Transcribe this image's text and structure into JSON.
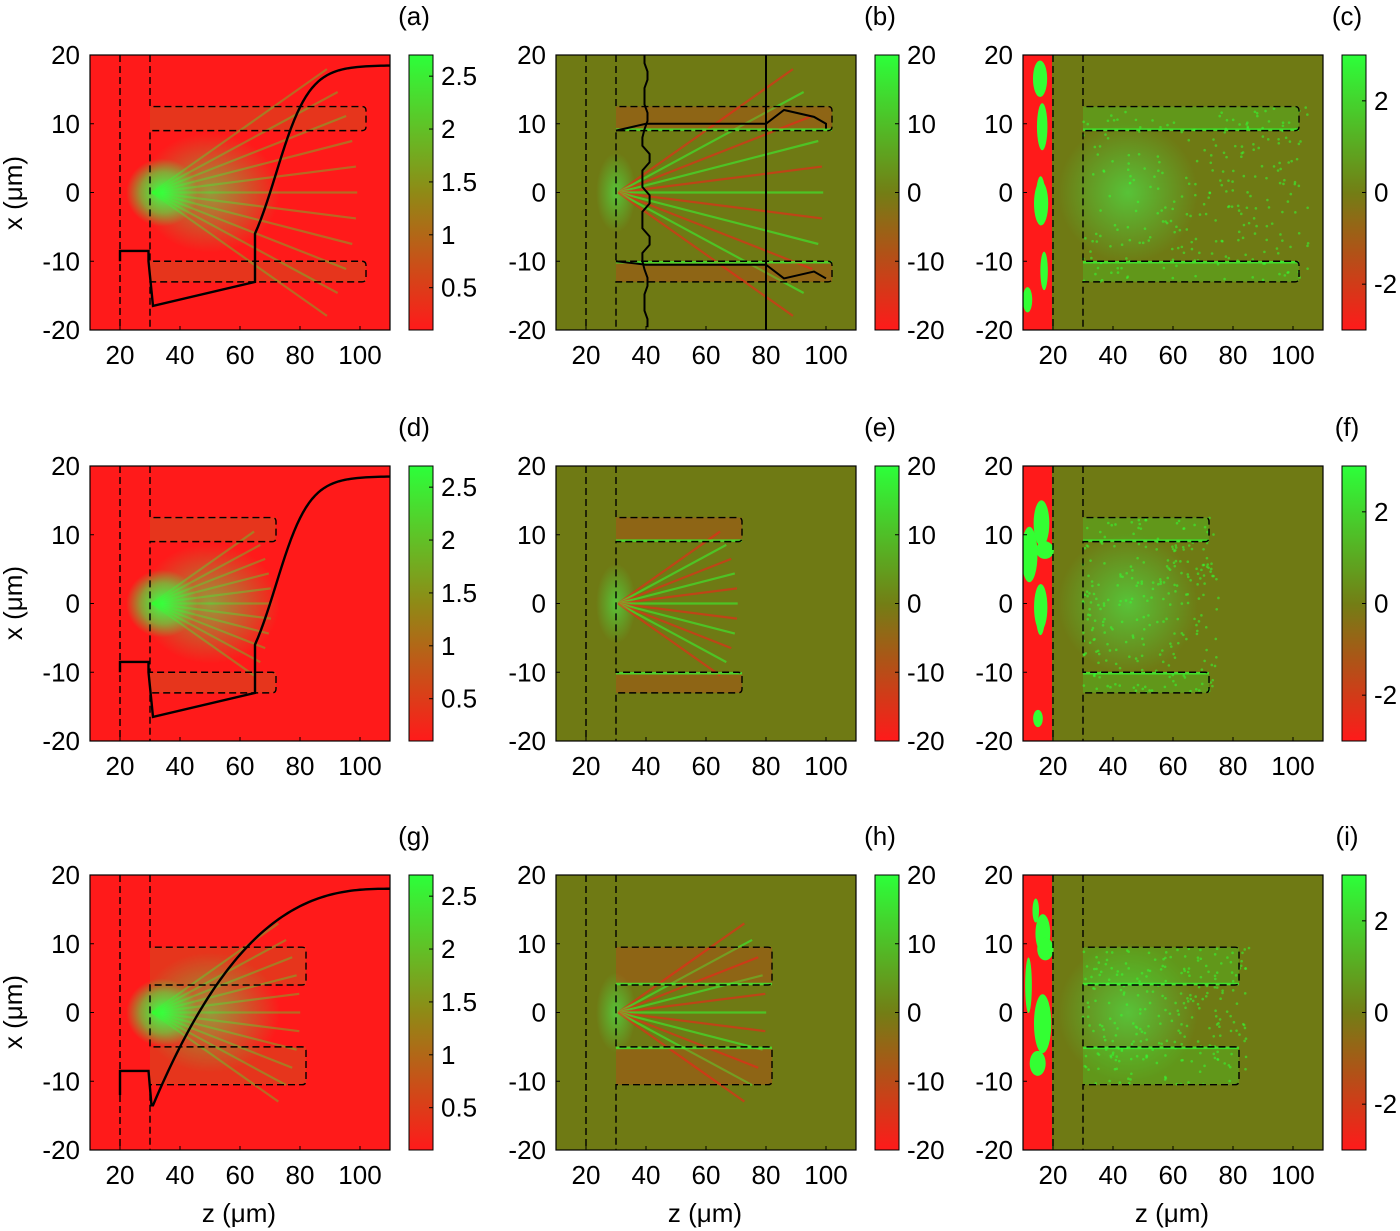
{
  "chart_data": [
    {
      "type": "heatmap",
      "panel": "(a)",
      "colorbar": "intensity",
      "xlim": [
        10,
        110
      ],
      "ylim": [
        -20,
        20
      ],
      "xticks": [
        "20",
        "40",
        "60",
        "80",
        "100"
      ],
      "yticks": [
        "20",
        "10",
        "0",
        "-10",
        "-20"
      ],
      "cbticks": [
        "2.5",
        "2",
        "1.5",
        "1",
        "0.5"
      ],
      "cbrange": [
        0.1,
        2.7
      ],
      "overlay": "profile-a",
      "device": {
        "wallStart": 20,
        "wallEnd": 30,
        "armEnd": 102,
        "upper": [
          9,
          12.5
        ],
        "lower": [
          -13,
          -10
        ]
      }
    },
    {
      "type": "heatmap",
      "panel": "(b)",
      "colorbar": "field",
      "xlim": [
        10,
        110
      ],
      "ylim": [
        -20,
        20
      ],
      "xticks": [
        "20",
        "40",
        "60",
        "80",
        "100"
      ],
      "yticks": [
        "20",
        "10",
        "0",
        "-10",
        "-20"
      ],
      "cbticks": [
        "20",
        "10",
        "0",
        "-10",
        "-20"
      ],
      "cbrange": [
        -20,
        20
      ],
      "overlay": "profile-b",
      "device": {
        "wallStart": 20,
        "wallEnd": 30,
        "armEnd": 102,
        "upper": [
          9,
          12.5
        ],
        "lower": [
          -13,
          -10
        ]
      }
    },
    {
      "type": "heatmap",
      "panel": "(c)",
      "colorbar": "phase",
      "xlim": [
        10,
        110
      ],
      "ylim": [
        -20,
        20
      ],
      "xticks": [
        "20",
        "40",
        "60",
        "80",
        "100"
      ],
      "yticks": [
        "20",
        "10",
        "0",
        "-10",
        "-20"
      ],
      "cbticks": [
        "2",
        "0",
        "-2"
      ],
      "cbrange": [
        -3,
        3
      ],
      "overlay": "none",
      "device": {
        "wallStart": 20,
        "wallEnd": 30,
        "armEnd": 102,
        "upper": [
          9,
          12.5
        ],
        "lower": [
          -13,
          -10
        ]
      }
    },
    {
      "type": "heatmap",
      "panel": "(d)",
      "colorbar": "intensity",
      "xlim": [
        10,
        110
      ],
      "ylim": [
        -20,
        20
      ],
      "xticks": [
        "20",
        "40",
        "60",
        "80",
        "100"
      ],
      "yticks": [
        "20",
        "10",
        "0",
        "-10",
        "-20"
      ],
      "cbticks": [
        "2.5",
        "2",
        "1.5",
        "1",
        "0.5"
      ],
      "cbrange": [
        0.1,
        2.7
      ],
      "overlay": "profile-a",
      "device": {
        "wallStart": 20,
        "wallEnd": 30,
        "armEnd": 72,
        "upper": [
          9,
          12.5
        ],
        "lower": [
          -13,
          -10
        ]
      }
    },
    {
      "type": "heatmap",
      "panel": "(e)",
      "colorbar": "field",
      "xlim": [
        10,
        110
      ],
      "ylim": [
        -20,
        20
      ],
      "xticks": [
        "20",
        "40",
        "60",
        "80",
        "100"
      ],
      "yticks": [
        "20",
        "10",
        "0",
        "-10",
        "-20"
      ],
      "cbticks": [
        "20",
        "10",
        "0",
        "-10",
        "-20"
      ],
      "cbrange": [
        -20,
        20
      ],
      "overlay": "none",
      "device": {
        "wallStart": 20,
        "wallEnd": 30,
        "armEnd": 72,
        "upper": [
          9,
          12.5
        ],
        "lower": [
          -13,
          -10
        ]
      }
    },
    {
      "type": "heatmap",
      "panel": "(f)",
      "colorbar": "phase",
      "xlim": [
        10,
        110
      ],
      "ylim": [
        -20,
        20
      ],
      "xticks": [
        "20",
        "40",
        "60",
        "80",
        "100"
      ],
      "yticks": [
        "20",
        "10",
        "0",
        "-10",
        "-20"
      ],
      "cbticks": [
        "2",
        "0",
        "-2"
      ],
      "cbrange": [
        -3,
        3
      ],
      "overlay": "none",
      "device": {
        "wallStart": 20,
        "wallEnd": 30,
        "armEnd": 72,
        "upper": [
          9,
          12.5
        ],
        "lower": [
          -13,
          -10
        ]
      }
    },
    {
      "type": "heatmap",
      "panel": "(g)",
      "colorbar": "intensity",
      "xlim": [
        10,
        110
      ],
      "ylim": [
        -20,
        20
      ],
      "xticks": [
        "20",
        "40",
        "60",
        "80",
        "100"
      ],
      "yticks": [
        "20",
        "10",
        "0",
        "-10",
        "-20"
      ],
      "cbticks": [
        "2.5",
        "2",
        "1.5",
        "1",
        "0.5"
      ],
      "cbrange": [
        0.1,
        2.7
      ],
      "overlay": "profile-g",
      "device": {
        "wallStart": 20,
        "wallEnd": 30,
        "armEnd": 82,
        "upper": [
          4,
          9.5
        ],
        "lower": [
          -10.5,
          -5
        ]
      }
    },
    {
      "type": "heatmap",
      "panel": "(h)",
      "colorbar": "field",
      "xlim": [
        10,
        110
      ],
      "ylim": [
        -20,
        20
      ],
      "xticks": [
        "20",
        "40",
        "60",
        "80",
        "100"
      ],
      "yticks": [
        "20",
        "10",
        "0",
        "-10",
        "-20"
      ],
      "cbticks": [
        "20",
        "10",
        "0",
        "-10",
        "-20"
      ],
      "cbrange": [
        -20,
        20
      ],
      "overlay": "none",
      "device": {
        "wallStart": 20,
        "wallEnd": 30,
        "armEnd": 82,
        "upper": [
          4,
          9.5
        ],
        "lower": [
          -10.5,
          -5
        ]
      }
    },
    {
      "type": "heatmap",
      "panel": "(i)",
      "colorbar": "phase",
      "xlim": [
        10,
        110
      ],
      "ylim": [
        -20,
        20
      ],
      "xticks": [
        "20",
        "40",
        "60",
        "80",
        "100"
      ],
      "yticks": [
        "20",
        "10",
        "0",
        "-10",
        "-20"
      ],
      "cbticks": [
        "2",
        "0",
        "-2"
      ],
      "cbrange": [
        -3,
        3
      ],
      "overlay": "none",
      "device": {
        "wallStart": 20,
        "wallEnd": 30,
        "armEnd": 82,
        "upper": [
          4,
          9.5
        ],
        "lower": [
          -10.5,
          -5
        ]
      }
    }
  ],
  "labels": {
    "ylabel": "x (μm)",
    "xlabel": "z (μm)"
  },
  "colors": {
    "red": "#ff1a1a",
    "green": "#33ff33",
    "olive": "#6f7a14",
    "line": "#000000"
  }
}
